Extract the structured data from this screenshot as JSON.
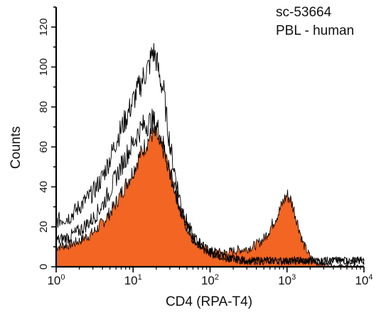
{
  "chart_data": {
    "type": "area",
    "title": "",
    "xlabel": "CD4 (RPA-T4)",
    "ylabel": "Counts",
    "x_scale": "log",
    "xlim": [
      1,
      10000
    ],
    "ylim": [
      0,
      130
    ],
    "x_ticks": [
      {
        "value": 1,
        "base": "10",
        "exp": "0"
      },
      {
        "value": 10,
        "base": "10",
        "exp": "1"
      },
      {
        "value": 100,
        "base": "10",
        "exp": "2"
      },
      {
        "value": 1000,
        "base": "10",
        "exp": "3"
      },
      {
        "value": 10000,
        "base": "10",
        "exp": "4"
      }
    ],
    "y_ticks": [
      0,
      20,
      40,
      60,
      80,
      100,
      120
    ],
    "grid": false,
    "legend": "none",
    "annotations": [
      "sc-53664",
      "PBL - human"
    ],
    "fill_color": "#f26522",
    "line_color": "#000000",
    "series": [
      {
        "style": "filled",
        "x": [
          1,
          1.5,
          2,
          3,
          4,
          5,
          6,
          8,
          10,
          12,
          14,
          16,
          18,
          20,
          22,
          25,
          28,
          32,
          40,
          50,
          60,
          80,
          100,
          150,
          200,
          300,
          400,
          500,
          600,
          700,
          800,
          900,
          1000,
          1100,
          1200,
          1400,
          1600,
          2000,
          2500,
          3000,
          4000,
          6000,
          10000
        ],
        "y": [
          10,
          11,
          13,
          17,
          22,
          27,
          32,
          41,
          48,
          55,
          60,
          64,
          67,
          66,
          62,
          58,
          52,
          44,
          30,
          20,
          14,
          10,
          8,
          7,
          8,
          9,
          11,
          14,
          19,
          24,
          28,
          33,
          36,
          34,
          30,
          21,
          12,
          5,
          2,
          1,
          0.5,
          0.2,
          0
        ]
      },
      {
        "style": "outline",
        "x": [
          1,
          1.5,
          2,
          3,
          4,
          5,
          6,
          8,
          10,
          12,
          14,
          16,
          18,
          20,
          22,
          25,
          28,
          32,
          40,
          50,
          60,
          80,
          100,
          150,
          200,
          300,
          400,
          600,
          1000,
          2000,
          5000,
          10000
        ],
        "y": [
          23,
          25,
          30,
          37,
          45,
          54,
          63,
          74,
          83,
          90,
          96,
          100,
          108,
          104,
          95,
          88,
          70,
          55,
          35,
          22,
          15,
          10,
          7,
          5,
          4,
          3,
          3,
          3,
          3,
          3,
          3,
          3
        ]
      },
      {
        "style": "outline",
        "x": [
          1,
          1.5,
          2,
          3,
          4,
          5,
          6,
          8,
          10,
          12,
          14,
          16,
          18,
          20,
          22,
          25,
          28,
          32,
          40,
          50,
          60,
          80,
          100,
          150,
          200,
          300,
          400,
          600,
          1000,
          2000,
          5000,
          10000
        ],
        "y": [
          13,
          15,
          18,
          24,
          31,
          38,
          45,
          55,
          62,
          68,
          71,
          72,
          73,
          71,
          67,
          60,
          52,
          43,
          30,
          20,
          14,
          10,
          7,
          5,
          4,
          3,
          3,
          3,
          3,
          3,
          3,
          3
        ]
      }
    ]
  }
}
